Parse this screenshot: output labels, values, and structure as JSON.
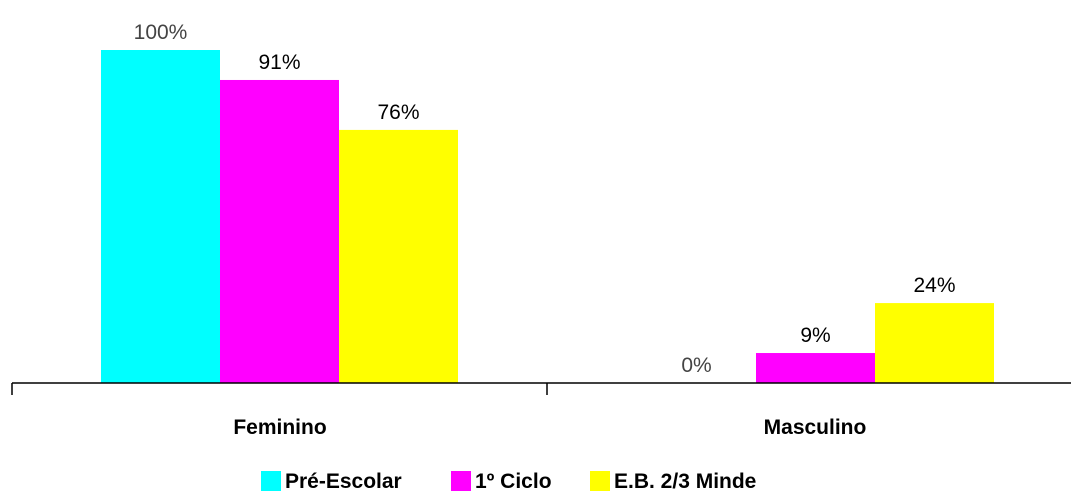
{
  "chart_data": {
    "type": "bar",
    "categories": [
      "Feminino",
      "Masculino"
    ],
    "series": [
      {
        "name": "Pré-Escolar",
        "values": [
          100,
          0
        ],
        "labels": [
          "100%",
          "0%"
        ],
        "color": "#00ffff"
      },
      {
        "name": "1º Ciclo",
        "values": [
          91,
          9
        ],
        "labels": [
          "91%",
          "9%"
        ],
        "color": "#ff00ff"
      },
      {
        "name": "E.B. 2/3 Minde",
        "values": [
          76,
          24
        ],
        "labels": [
          "76%",
          "24%"
        ],
        "color": "#ffff00"
      }
    ],
    "ylim": [
      0,
      100
    ],
    "grid": false,
    "legend_position": "bottom"
  }
}
